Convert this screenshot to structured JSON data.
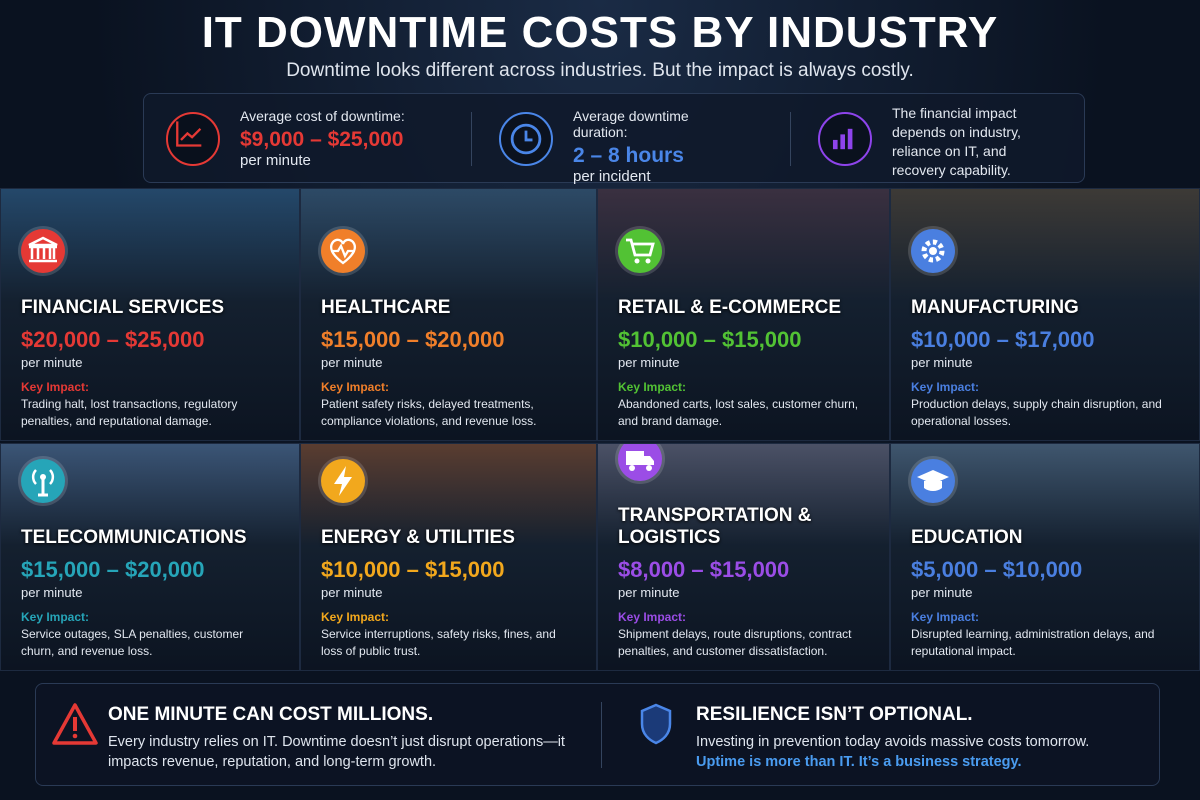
{
  "header": {
    "title": "IT DOWNTIME COSTS BY INDUSTRY",
    "subtitle": "Downtime looks different across industries. But the impact is always costly."
  },
  "stats": [
    {
      "label": "Average cost of downtime:",
      "value": "$9,000 – $25,000",
      "unit": "per minute",
      "color": "#e53935"
    },
    {
      "label": "Average downtime duration:",
      "value": "2 – 8 hours",
      "unit": "per incident",
      "color": "#4a86e8"
    },
    {
      "text": "The financial impact depends on industry, reliance on IT, and recovery capability.",
      "color": "#8e44ec"
    }
  ],
  "industries": [
    {
      "name": "FINANCIAL SERVICES",
      "range": "$20,000 – $25,000",
      "unit": "per minute",
      "impact_label": "Key Impact:",
      "impact": "Trading halt, lost transactions, regulatory penalties, and reputational damage.",
      "color": "#e53935"
    },
    {
      "name": "HEALTHCARE",
      "range": "$15,000 – $20,000",
      "unit": "per minute",
      "impact_label": "Key Impact:",
      "impact": "Patient safety risks, delayed treatments, compliance violations, and revenue loss.",
      "color": "#f07f2a"
    },
    {
      "name": "RETAIL & E-COMMERCE",
      "range": "$10,000 – $15,000",
      "unit": "per minute",
      "impact_label": "Key Impact:",
      "impact": "Abandoned carts, lost sales, customer churn, and brand damage.",
      "color": "#52c234"
    },
    {
      "name": "MANUFACTURING",
      "range": "$10,000 – $17,000",
      "unit": "per minute",
      "impact_label": "Key Impact:",
      "impact": "Production delays, supply chain disruption, and operational losses.",
      "color": "#4a7fe0"
    },
    {
      "name": "TELECOMMUNICATIONS",
      "range": "$15,000 – $20,000",
      "unit": "per minute",
      "impact_label": "Key Impact:",
      "impact": "Service outages, SLA penalties, customer churn, and revenue loss.",
      "color": "#26a5b8"
    },
    {
      "name": "ENERGY & UTILITIES",
      "range": "$10,000 – $15,000",
      "unit": "per minute",
      "impact_label": "Key Impact:",
      "impact": "Service interruptions, safety risks, fines, and loss of public trust.",
      "color": "#f2a81d"
    },
    {
      "name": "TRANSPORTATION & LOGISTICS",
      "range": "$8,000 – $15,000",
      "unit": "per minute",
      "impact_label": "Key Impact:",
      "impact": "Shipment delays, route disruptions, contract penalties, and customer dissatisfaction.",
      "color": "#9b4de6"
    },
    {
      "name": "EDUCATION",
      "range": "$5,000 – $10,000",
      "unit": "per minute",
      "impact_label": "Key Impact:",
      "impact": "Disrupted learning, administration delays, and reputational impact.",
      "color": "#4a7fe0"
    }
  ],
  "footer": {
    "left": {
      "title": "ONE MINUTE CAN COST MILLIONS.",
      "text": "Every industry relies on IT. Downtime doesn’t just disrupt operations—it impacts revenue, reputation, and long-term growth."
    },
    "right": {
      "title": "RESILIENCE ISN’T OPTIONAL.",
      "text": "Investing in prevention today avoids massive costs tomorrow.",
      "emphasis": "Uptime is more than IT. It’s a business strategy."
    }
  }
}
